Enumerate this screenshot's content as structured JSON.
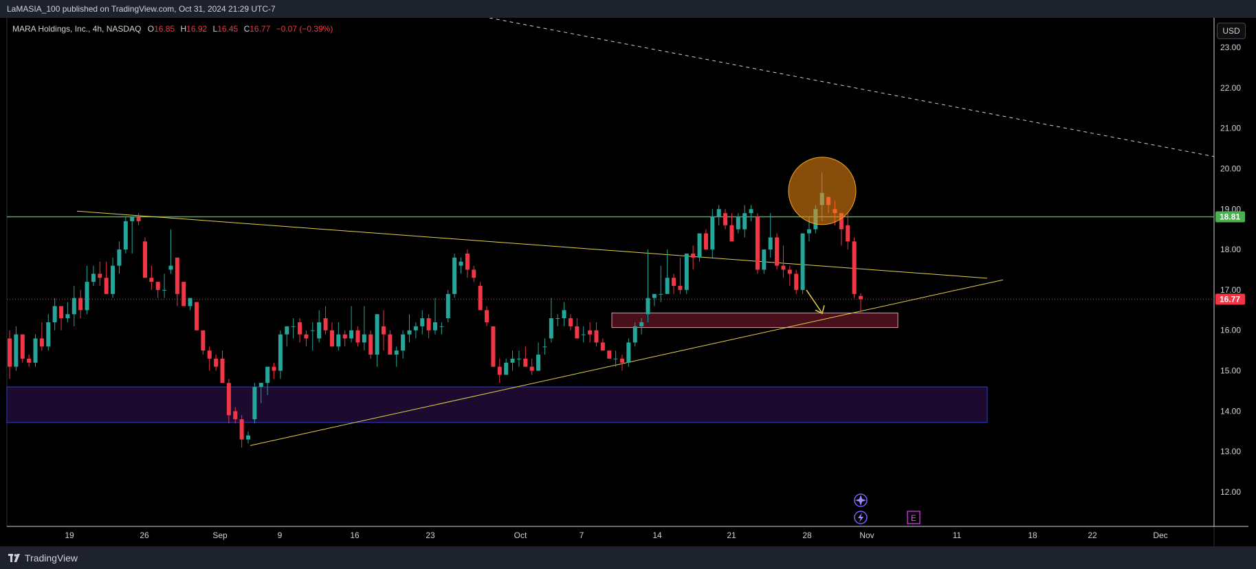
{
  "header": {
    "publish_line": "LaMASIA_100 published on TradingView.com, Oct 31, 2024 21:29 UTC-7"
  },
  "footer": {
    "brand": "TradingView"
  },
  "legend": {
    "symbol": "MARA Holdings, Inc., 4h, NASDAQ",
    "open_label": "O",
    "open": "16.85",
    "high_label": "H",
    "high": "16.92",
    "low_label": "L",
    "low": "16.45",
    "close_label": "C",
    "close": "16.77",
    "change": "−0.07 (−0.39%)"
  },
  "currency_button": "USD",
  "colors": {
    "up": "#26a69a",
    "down": "#f23645",
    "trend": "#e8d44d",
    "resistance": "#4caf50",
    "zone_blue_fill": "#1c0b2e",
    "zone_blue_border": "#2e3fd1",
    "zone_red_fill": "#4a0f1c",
    "circle": "#f5a623",
    "price_label_bg": "#f23645"
  },
  "chart_data": {
    "type": "candlestick",
    "symbol": "MARA",
    "interval": "4h",
    "ylim": [
      11.2,
      23.7
    ],
    "x_ticks": [
      "19",
      "26",
      "Sep",
      "9",
      "16",
      "23",
      "Oct",
      "7",
      "14",
      "21",
      "28",
      "Nov",
      "11",
      "18",
      "22",
      "Dec"
    ],
    "y_ticks": [
      "23.00",
      "22.00",
      "21.00",
      "20.00",
      "19.00",
      "18.00",
      "17.00",
      "16.00",
      "15.00",
      "14.00",
      "13.00",
      "12.00"
    ],
    "last_price": 16.77,
    "last_price_label": "16.77",
    "resistance_level": 18.81,
    "resistance_label": "18.81",
    "candles": [
      [
        15.8,
        16.0,
        14.8,
        15.1
      ],
      [
        15.1,
        16.1,
        15.0,
        15.9
      ],
      [
        15.9,
        15.9,
        15.2,
        15.3
      ],
      [
        15.3,
        15.4,
        15.1,
        15.2
      ],
      [
        15.2,
        15.9,
        15.1,
        15.8
      ],
      [
        15.8,
        16.2,
        15.5,
        15.6
      ],
      [
        15.6,
        16.4,
        15.5,
        16.2
      ],
      [
        16.2,
        16.8,
        16.0,
        16.6
      ],
      [
        16.6,
        16.6,
        16.0,
        16.3
      ],
      [
        16.3,
        16.7,
        16.2,
        16.4
      ],
      [
        16.4,
        17.1,
        16.1,
        16.8
      ],
      [
        16.8,
        17.0,
        16.3,
        16.5
      ],
      [
        16.5,
        17.6,
        16.4,
        17.2
      ],
      [
        17.2,
        17.6,
        17.1,
        17.4
      ],
      [
        17.4,
        17.7,
        17.1,
        17.3
      ],
      [
        17.3,
        17.7,
        16.9,
        16.9
      ],
      [
        16.9,
        17.8,
        16.8,
        17.6
      ],
      [
        17.6,
        18.2,
        17.4,
        18.0
      ],
      [
        18.0,
        18.8,
        17.9,
        18.7
      ],
      [
        18.7,
        18.8,
        17.9,
        18.8
      ],
      [
        18.8,
        18.9,
        18.6,
        18.7
      ],
      [
        18.2,
        18.3,
        17.3,
        17.3
      ],
      [
        17.3,
        17.6,
        17.0,
        17.2
      ],
      [
        17.2,
        17.2,
        16.8,
        17.0
      ],
      [
        17.0,
        17.4,
        16.8,
        17.0
      ],
      [
        17.5,
        18.5,
        17.4,
        17.6
      ],
      [
        17.8,
        17.8,
        16.6,
        16.9
      ],
      [
        17.2,
        17.2,
        16.6,
        16.6
      ],
      [
        16.6,
        16.8,
        16.5,
        16.8
      ],
      [
        16.7,
        16.7,
        16.0,
        16.0
      ],
      [
        16.0,
        16.0,
        15.4,
        15.5
      ],
      [
        15.5,
        15.6,
        15.0,
        15.3
      ],
      [
        15.3,
        15.4,
        15.0,
        15.1
      ],
      [
        15.3,
        15.5,
        14.8,
        14.7
      ],
      [
        14.7,
        14.8,
        13.7,
        13.9
      ],
      [
        14.0,
        14.1,
        13.7,
        13.8
      ],
      [
        13.8,
        13.9,
        13.1,
        13.3
      ],
      [
        13.3,
        13.5,
        13.2,
        13.4
      ],
      [
        13.8,
        14.7,
        13.7,
        14.6
      ],
      [
        14.6,
        14.7,
        14.2,
        14.7
      ],
      [
        14.7,
        15.1,
        14.4,
        15.1
      ],
      [
        15.1,
        15.2,
        14.8,
        15.0
      ],
      [
        15.0,
        16.0,
        14.8,
        15.9
      ],
      [
        15.9,
        16.1,
        15.6,
        16.1
      ],
      [
        16.1,
        16.3,
        15.8,
        16.1
      ],
      [
        16.2,
        16.3,
        15.7,
        15.9
      ],
      [
        15.9,
        16.0,
        15.6,
        15.8
      ],
      [
        16.0,
        16.2,
        15.5,
        16.0
      ],
      [
        15.8,
        16.5,
        15.7,
        16.2
      ],
      [
        16.3,
        16.6,
        15.9,
        16.0
      ],
      [
        16.0,
        16.2,
        15.6,
        15.6
      ],
      [
        15.6,
        16.2,
        15.5,
        15.9
      ],
      [
        15.9,
        16.0,
        15.6,
        15.8
      ],
      [
        15.8,
        16.6,
        15.7,
        16.0
      ],
      [
        16.0,
        16.1,
        15.6,
        15.7
      ],
      [
        15.7,
        16.6,
        15.5,
        15.9
      ],
      [
        15.9,
        16.0,
        15.3,
        15.4
      ],
      [
        15.4,
        16.4,
        15.1,
        16.4
      ],
      [
        16.1,
        16.5,
        15.5,
        15.9
      ],
      [
        15.9,
        16.0,
        15.4,
        15.4
      ],
      [
        15.4,
        15.6,
        15.1,
        15.5
      ],
      [
        15.5,
        16.0,
        15.3,
        15.9
      ],
      [
        15.9,
        16.4,
        15.7,
        16.0
      ],
      [
        16.0,
        16.2,
        15.8,
        16.1
      ],
      [
        16.1,
        16.5,
        15.9,
        16.3
      ],
      [
        16.3,
        16.4,
        15.8,
        16.0
      ],
      [
        16.0,
        16.8,
        15.9,
        16.2
      ],
      [
        16.1,
        16.2,
        15.9,
        16.1
      ],
      [
        16.3,
        17.0,
        16.2,
        16.9
      ],
      [
        16.9,
        17.9,
        16.8,
        17.8
      ],
      [
        17.6,
        17.8,
        17.4,
        17.7
      ],
      [
        17.9,
        18.0,
        17.3,
        17.5
      ],
      [
        17.5,
        17.6,
        17.2,
        17.3
      ],
      [
        17.1,
        17.2,
        16.6,
        16.5
      ],
      [
        16.5,
        16.6,
        16.1,
        16.2
      ],
      [
        16.1,
        16.1,
        15.1,
        15.1
      ],
      [
        15.1,
        15.3,
        14.7,
        14.9
      ],
      [
        14.9,
        15.3,
        14.9,
        15.2
      ],
      [
        15.2,
        15.5,
        15.0,
        15.3
      ],
      [
        15.3,
        15.5,
        15.1,
        15.3
      ],
      [
        15.3,
        15.6,
        15.1,
        15.1
      ],
      [
        15.1,
        15.3,
        14.9,
        15.0
      ],
      [
        15.0,
        15.7,
        15.0,
        15.4
      ],
      [
        15.6,
        15.8,
        15.4,
        15.6
      ],
      [
        15.8,
        16.8,
        15.7,
        16.3
      ],
      [
        16.3,
        16.4,
        16.1,
        16.3
      ],
      [
        16.3,
        16.7,
        16.1,
        16.5
      ],
      [
        16.3,
        16.4,
        16.0,
        16.1
      ],
      [
        16.1,
        16.3,
        15.9,
        15.8
      ],
      [
        15.9,
        16.1,
        15.7,
        15.9
      ],
      [
        16.0,
        16.2,
        15.7,
        15.9
      ],
      [
        16.0,
        16.2,
        15.6,
        15.7
      ],
      [
        15.7,
        15.8,
        15.5,
        15.5
      ],
      [
        15.5,
        15.5,
        15.3,
        15.3
      ],
      [
        15.3,
        15.5,
        15.1,
        15.3
      ],
      [
        15.3,
        15.4,
        15.0,
        15.2
      ],
      [
        15.2,
        15.8,
        15.1,
        15.7
      ],
      [
        15.7,
        16.2,
        15.6,
        16.1
      ],
      [
        16.1,
        16.3,
        15.9,
        16.2
      ],
      [
        16.4,
        18.0,
        16.2,
        16.8
      ],
      [
        16.8,
        16.9,
        16.6,
        16.9
      ],
      [
        16.9,
        17.6,
        16.7,
        16.9
      ],
      [
        16.9,
        18.0,
        16.9,
        17.3
      ],
      [
        17.3,
        17.4,
        16.9,
        17.1
      ],
      [
        17.1,
        17.8,
        16.9,
        17.0
      ],
      [
        17.0,
        17.9,
        16.9,
        17.9
      ],
      [
        17.9,
        18.1,
        17.5,
        17.8
      ],
      [
        17.8,
        18.4,
        17.7,
        18.4
      ],
      [
        18.4,
        18.5,
        18.0,
        18.0
      ],
      [
        18.0,
        19.0,
        17.8,
        18.8
      ],
      [
        18.8,
        19.1,
        18.6,
        19.0
      ],
      [
        18.9,
        19.0,
        18.5,
        18.6
      ],
      [
        18.6,
        18.9,
        18.2,
        18.2
      ],
      [
        18.5,
        18.9,
        18.4,
        18.8
      ],
      [
        18.5,
        19.1,
        18.3,
        18.9
      ],
      [
        18.9,
        19.1,
        18.7,
        19.0
      ],
      [
        18.8,
        18.9,
        17.4,
        17.5
      ],
      [
        17.5,
        18.0,
        17.4,
        18.0
      ],
      [
        18.0,
        18.9,
        17.8,
        18.3
      ],
      [
        18.3,
        18.4,
        17.5,
        17.6
      ],
      [
        17.6,
        18.1,
        17.3,
        17.5
      ],
      [
        17.5,
        17.6,
        17.1,
        17.4
      ],
      [
        17.4,
        17.5,
        16.9,
        17.0
      ],
      [
        17.0,
        18.4,
        16.9,
        18.4
      ],
      [
        18.4,
        18.8,
        18.2,
        18.5
      ],
      [
        18.5,
        19.1,
        18.4,
        19.0
      ],
      [
        19.1,
        19.9,
        18.7,
        19.4
      ],
      [
        19.3,
        19.3,
        18.9,
        19.1
      ],
      [
        19.0,
        19.2,
        18.6,
        18.9
      ],
      [
        18.9,
        18.9,
        18.1,
        18.5
      ],
      [
        18.6,
        18.9,
        18.0,
        18.2
      ],
      [
        18.2,
        18.3,
        16.8,
        16.9
      ],
      [
        16.85,
        16.92,
        16.45,
        16.77
      ]
    ]
  },
  "annotations": {
    "earnings_badge": "E"
  }
}
